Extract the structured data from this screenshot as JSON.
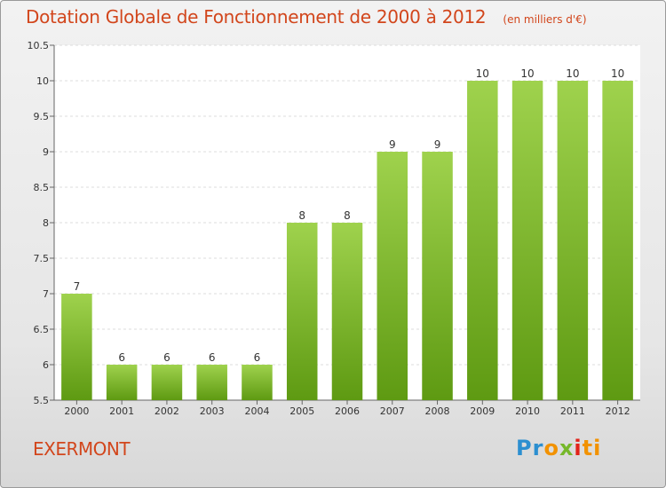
{
  "header": {
    "title": "Dotation Globale de Fonctionnement de 2000 à 2012",
    "subtitle": "(en milliers d'€)"
  },
  "footer": {
    "place": "EXERMONT",
    "logo": [
      "Pr",
      "o",
      "x",
      "i",
      "ti"
    ]
  },
  "colors": {
    "bar_top": "#9fd24d",
    "bar_bottom": "#5e9a12",
    "title": "#d2461c"
  },
  "chart_data": {
    "type": "bar",
    "categories": [
      "2000",
      "2001",
      "2002",
      "2003",
      "2004",
      "2005",
      "2006",
      "2007",
      "2008",
      "2009",
      "2010",
      "2011",
      "2012"
    ],
    "values": [
      7,
      6,
      6,
      6,
      6,
      8,
      8,
      9,
      9,
      10,
      10,
      10,
      10
    ],
    "data_labels": [
      "7",
      "6",
      "6",
      "6",
      "6",
      "8",
      "8",
      "9",
      "9",
      "10",
      "10",
      "10",
      "10"
    ],
    "title": "Dotation Globale de Fonctionnement de 2000 à 2012",
    "xlabel": "",
    "ylabel": "",
    "ylim": [
      5.5,
      10.5
    ],
    "yticks": [
      "5.5",
      "6",
      "6.5",
      "7",
      "7.5",
      "8",
      "8.5",
      "9",
      "9.5",
      "10",
      "10.5"
    ],
    "grid": true,
    "legend": "none"
  }
}
